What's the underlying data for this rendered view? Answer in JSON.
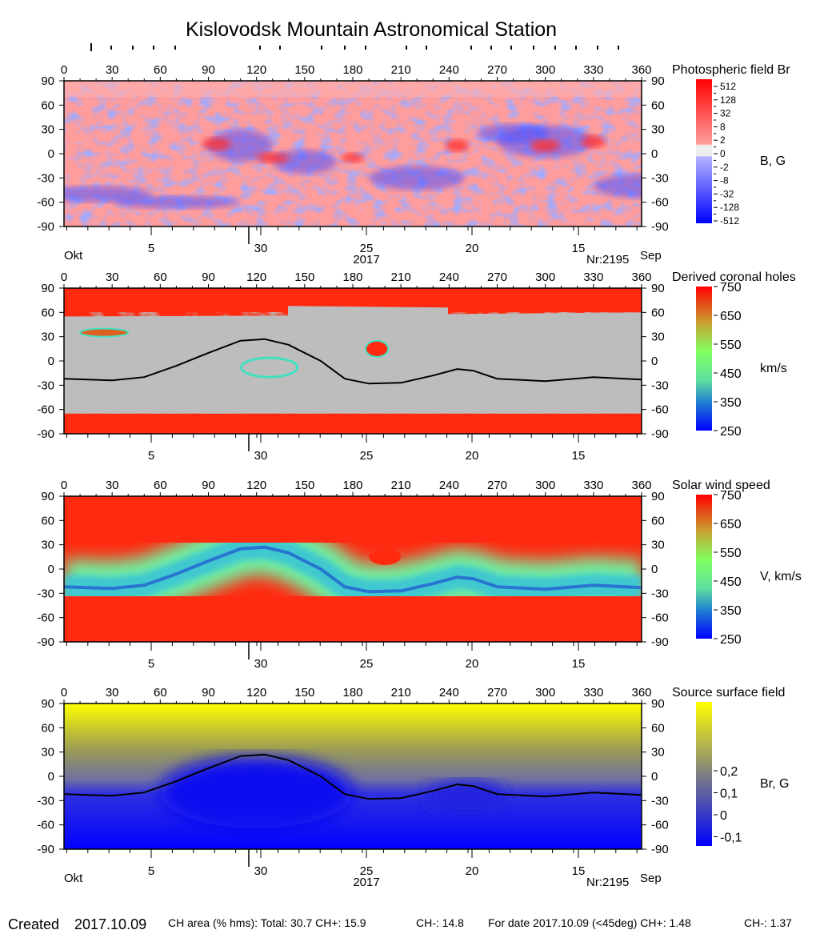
{
  "title": "Kislovodsk Mountain Astronomical Station",
  "lon_ticks": [
    "0",
    "30",
    "60",
    "90",
    "120",
    "150",
    "180",
    "210",
    "240",
    "270",
    "300",
    "330",
    "360"
  ],
  "lat_ticks": [
    "90",
    "60",
    "30",
    "0",
    "-30",
    "-60",
    "-90"
  ],
  "date_ticks": [
    "5",
    "30",
    "25",
    "20",
    "15"
  ],
  "month_left": "Okt",
  "month_right": "Sep",
  "year": "2017",
  "rotation": "Nr:2195",
  "panels": [
    {
      "title": "Photospheric field Br",
      "unit": "B, G",
      "colorbar_labels": [
        "512",
        "128",
        "32",
        "8",
        "2",
        "0",
        "-2",
        "-8",
        "-32",
        "-128",
        "-512"
      ],
      "colors": [
        "#ff0000",
        "#ff8080",
        "#eeeeee",
        "#8080ff",
        "#0000ff"
      ]
    },
    {
      "title": "Derived coronal holes",
      "unit": "km/s",
      "colorbar_labels": [
        "750",
        "650",
        "550",
        "450",
        "350",
        "250"
      ],
      "colors": [
        "#ff0000",
        "#c8a030",
        "#80ff60",
        "#60e0a0",
        "#2080d0",
        "#0000ff"
      ]
    },
    {
      "title": "Solar wind speed",
      "unit": "V, km/s",
      "colorbar_labels": [
        "750",
        "650",
        "550",
        "450",
        "350",
        "250"
      ],
      "colors": [
        "#ff0000",
        "#c8a030",
        "#80ff60",
        "#60e0a0",
        "#2080d0",
        "#0000ff"
      ]
    },
    {
      "title": "Source surface field",
      "unit": "Br, G",
      "colorbar_labels": [
        "0,2",
        "0,1",
        "0",
        "-0,1"
      ],
      "colors": [
        "#ffff00",
        "#808080",
        "#0000ff"
      ]
    }
  ],
  "chart_data": {
    "type": "heatmap",
    "xlabel": "",
    "ylabel": "",
    "xlim": [
      0,
      360
    ],
    "ylim": [
      -90,
      90
    ],
    "neutral_line": [
      [
        0,
        -22
      ],
      [
        30,
        -24
      ],
      [
        50,
        -20
      ],
      [
        70,
        -6
      ],
      [
        90,
        10
      ],
      [
        110,
        25
      ],
      [
        125,
        27
      ],
      [
        140,
        20
      ],
      [
        160,
        0
      ],
      [
        175,
        -22
      ],
      [
        190,
        -28
      ],
      [
        210,
        -27
      ],
      [
        230,
        -18
      ],
      [
        245,
        -10
      ],
      [
        255,
        -12
      ],
      [
        270,
        -22
      ],
      [
        300,
        -25
      ],
      [
        330,
        -20
      ],
      [
        360,
        -23
      ]
    ]
  },
  "footer": {
    "created_label": "Created",
    "created_date": "2017.10.09",
    "ch_area": "CH area (% hms): Total: 30.7 CH+: 15.9",
    "ch_minus": "CH-: 14.8",
    "for_date": "For date 2017.10.09 (<45deg) CH+: 1.48",
    "ch_minus_date": "CH-: 1.37"
  }
}
